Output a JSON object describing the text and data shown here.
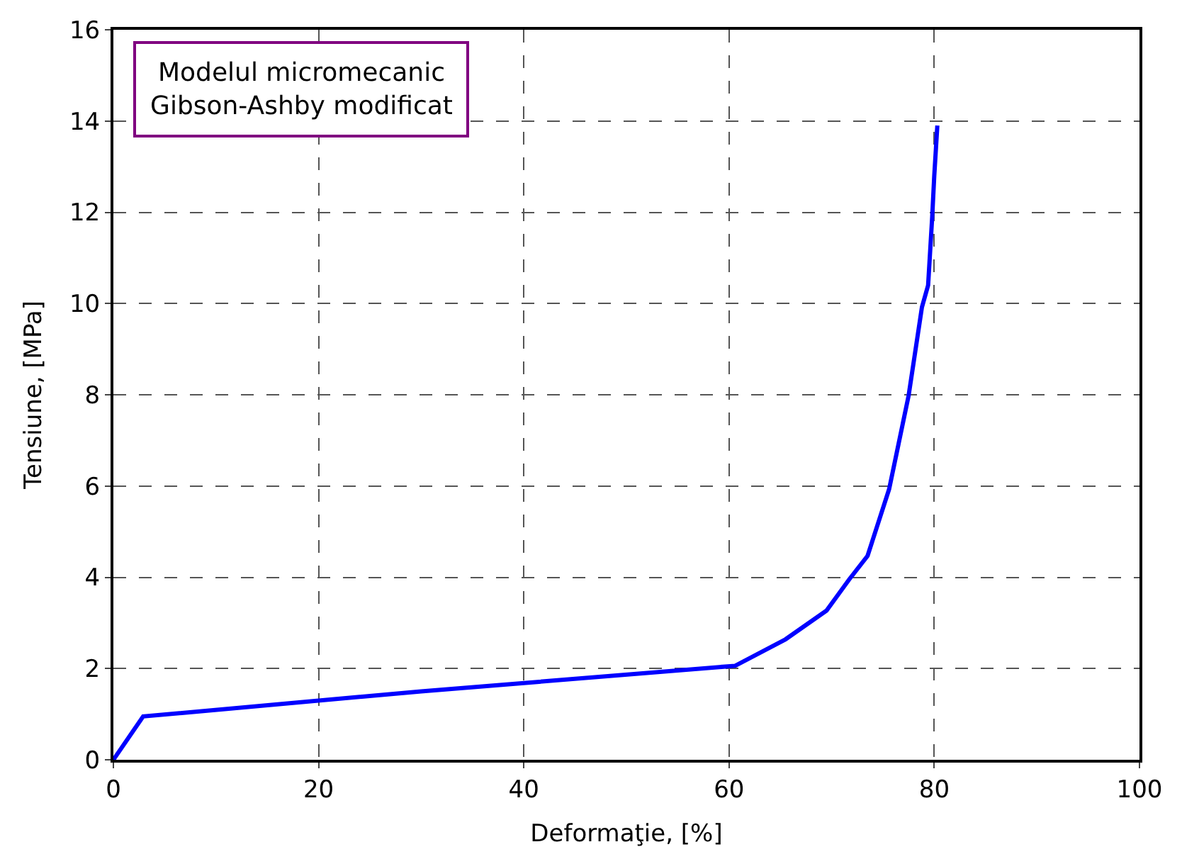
{
  "chart_data": {
    "type": "line",
    "xlabel": "Deformaţie, [%]",
    "ylabel": "Tensiune, [MPa]",
    "x": [
      0,
      2.9,
      30,
      60.6,
      65.5,
      69.5,
      71.7,
      73.5,
      75.6,
      77.5,
      78.8,
      79.4,
      79.8,
      80.0,
      80.3
    ],
    "series": [
      {
        "color": "#0000ff",
        "values": [
          0,
          0.95,
          1.5,
          2.06,
          2.64,
          3.27,
          3.95,
          4.47,
          5.93,
          7.98,
          9.92,
          10.4,
          11.9,
          12.8,
          13.9
        ]
      }
    ],
    "xlim": [
      0,
      100
    ],
    "xticks": [
      0,
      20,
      40,
      60,
      80,
      100
    ],
    "ylim": [
      0,
      16
    ],
    "yticks": [
      0,
      2,
      4,
      6,
      8,
      10,
      12,
      14,
      16
    ],
    "grid": true,
    "line_style": "solid",
    "marker": "none",
    "legend": false,
    "annotations": [
      "Modelul micromecanic\nGibson-Ashby modificat"
    ]
  }
}
